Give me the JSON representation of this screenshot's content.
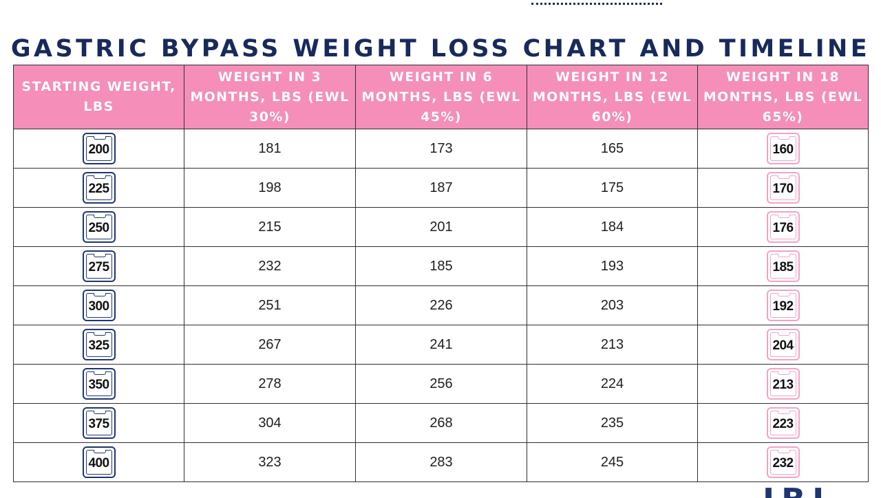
{
  "title": "GASTRIC BYPASS WEIGHT LOSS CHART AND TIMELINE",
  "headers": [
    "STARTING WEIGHT, LBS",
    "WEIGHT IN 3 MONTHS, LBS (EWL 30%)",
    "WEIGHT IN 6 MONTHS, LBS (EWL 45%)",
    "WEIGHT IN 12 MONTHS, LBS (EWL 60%)",
    "WEIGHT IN 18 MONTHS, LBS (EWL 65%)"
  ],
  "rows": [
    [
      "200",
      "181",
      "173",
      "165",
      "160"
    ],
    [
      "225",
      "198",
      "187",
      "175",
      "170"
    ],
    [
      "250",
      "215",
      "201",
      "184",
      "176"
    ],
    [
      "275",
      "232",
      "185",
      "193",
      "185"
    ],
    [
      "300",
      "251",
      "226",
      "203",
      "192"
    ],
    [
      "325",
      "267",
      "241",
      "213",
      "204"
    ],
    [
      "350",
      "278",
      "256",
      "224",
      "213"
    ],
    [
      "375",
      "304",
      "268",
      "235",
      "223"
    ],
    [
      "400",
      "323",
      "283",
      "245",
      "232"
    ]
  ],
  "colors": {
    "header_bg": "#f58fb9",
    "title": "#182a5c",
    "scale_navy": "#1e3570",
    "scale_pink": "#f4a3c4"
  },
  "icons": {
    "start_weight": "bathroom-scale-icon-navy",
    "final_weight": "bathroom-scale-icon-pink"
  }
}
